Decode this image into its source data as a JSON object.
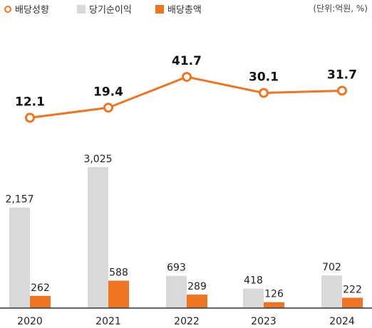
{
  "chart_data": {
    "type": "bar",
    "categories": [
      "2020",
      "2021",
      "2022",
      "2023",
      "2024"
    ],
    "unit": "(단위:억원, %)",
    "series": [
      {
        "name": "당기순이익",
        "kind": "bar",
        "color": "#d9d9d9",
        "values": [
          2157,
          3025,
          693,
          418,
          702
        ],
        "labels": [
          "2,157",
          "3,025",
          "693",
          "418",
          "702"
        ]
      },
      {
        "name": "배당총액",
        "kind": "bar",
        "color": "#ee7521",
        "values": [
          262,
          588,
          289,
          126,
          222
        ],
        "labels": [
          "262",
          "588",
          "289",
          "126",
          "222"
        ]
      },
      {
        "name": "배당성향",
        "kind": "line",
        "color": "#ee7521",
        "values": [
          12.1,
          19.4,
          41.7,
          30.1,
          31.7
        ],
        "labels": [
          "12.1",
          "19.4",
          "41.7",
          "30.1",
          "31.7"
        ]
      }
    ],
    "legend_position": "top-left",
    "grid": false
  }
}
